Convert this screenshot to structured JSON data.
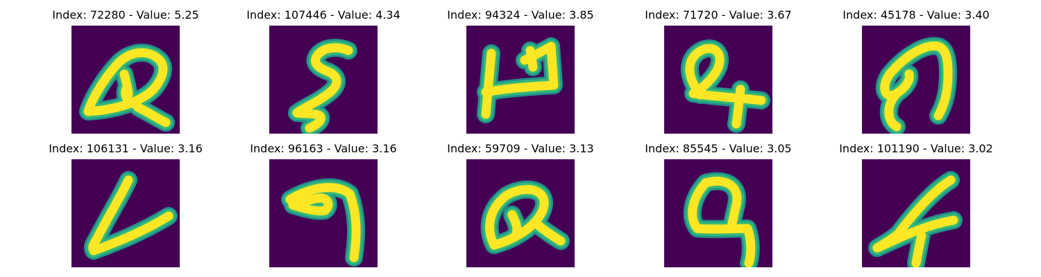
{
  "colors": {
    "background": "#440154",
    "stroke_core": "#fde725",
    "stroke_edge": "#35b779",
    "stroke_mid": "#21918c"
  },
  "panels": [
    {
      "title": "Index: 72280 - Value: 5.25",
      "glyph": "script-Q-loop"
    },
    {
      "title": "Index: 107446 - Value: 4.34",
      "glyph": "script-S"
    },
    {
      "title": "Index: 94324 - Value: 3.85",
      "glyph": "block-H"
    },
    {
      "title": "Index: 71720 - Value: 3.67",
      "glyph": "script-Q-tail"
    },
    {
      "title": "Index: 45178 - Value: 3.40",
      "glyph": "arch-a"
    },
    {
      "title": "Index: 106131 - Value: 3.16",
      "glyph": "check-L"
    },
    {
      "title": "Index: 96163 - Value: 3.16",
      "glyph": "hook-9"
    },
    {
      "title": "Index: 59709 - Value: 3.13",
      "glyph": "round-Q"
    },
    {
      "title": "Index: 85545 - Value: 3.05",
      "glyph": "open-Q"
    },
    {
      "title": "Index: 101190 - Value: 3.02",
      "glyph": "cursive-f"
    }
  ]
}
